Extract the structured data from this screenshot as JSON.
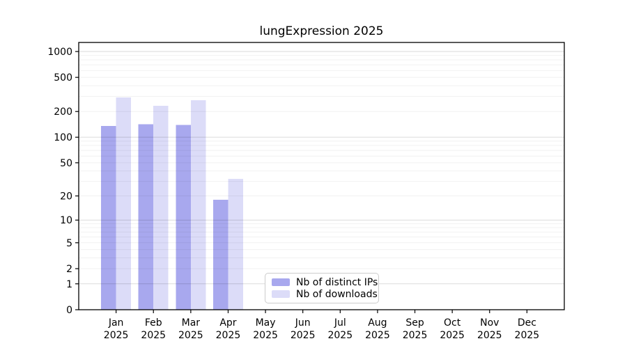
{
  "chart_data": {
    "type": "bar",
    "title": "lungExpression 2025",
    "categories": [
      "Jan 2025",
      "Feb 2025",
      "Mar 2025",
      "Apr 2025",
      "May 2025",
      "Jun 2025",
      "Jul 2025",
      "Aug 2025",
      "Sep 2025",
      "Oct 2025",
      "Nov 2025",
      "Dec 2025"
    ],
    "series": [
      {
        "name": "Nb of distinct IPs",
        "color": "#a8a8ee",
        "values": [
          136,
          142,
          140,
          18,
          null,
          null,
          null,
          null,
          null,
          null,
          null,
          null
        ]
      },
      {
        "name": "Nb of downloads",
        "color": "#dcdcf8",
        "values": [
          291,
          233,
          270,
          32,
          null,
          null,
          null,
          null,
          null,
          null,
          null,
          null
        ]
      }
    ],
    "y_axis": {
      "scale": "log10(1+x)",
      "ticks": [
        0,
        1,
        2,
        5,
        10,
        20,
        50,
        100,
        200,
        500,
        1000
      ],
      "range": [
        0,
        1000
      ]
    },
    "grid": {
      "major": [
        1,
        10,
        100,
        1000
      ],
      "minor": [
        2,
        3,
        4,
        5,
        6,
        7,
        8,
        9,
        20,
        30,
        40,
        50,
        60,
        70,
        80,
        90,
        200,
        300,
        400,
        500,
        600,
        700,
        800,
        900
      ]
    },
    "legend": {
      "location": "lower center",
      "inside_plot": true
    }
  },
  "colors": {
    "axis": "#000000",
    "text": "#000000",
    "background": "#ffffff",
    "gridline_major_alpha": "rgba(0,0,0,0.145)",
    "gridline_minor_alpha": "rgba(0,0,0,0.055)"
  }
}
